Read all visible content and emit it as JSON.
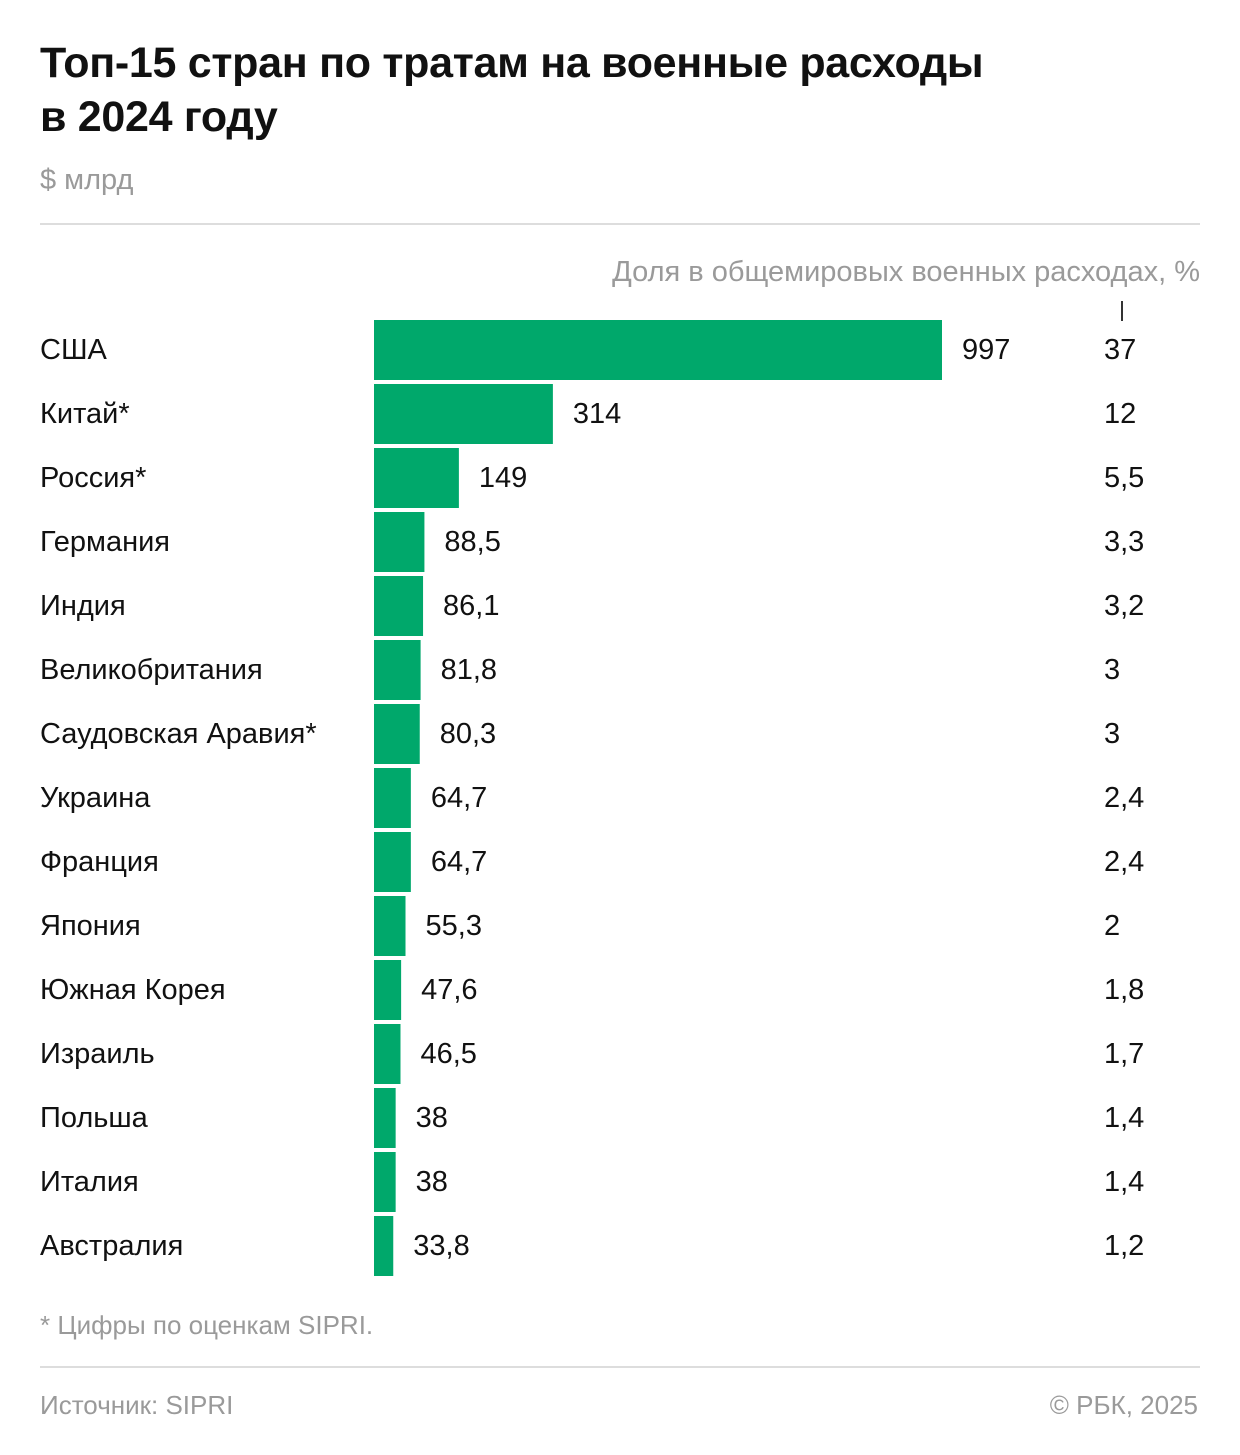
{
  "title": {
    "line1": "Топ-15 стран по тратам на военные расходы",
    "line2": "в 2024 году"
  },
  "unit": "$ млрд",
  "share_label": "Доля в общемировых военных расходах, %",
  "footnote": "* Цифры по оценкам SIPRI.",
  "source": "Источник: SIPRI",
  "copyright": "© РБК, 2025",
  "colors": {
    "bar": "#00a86b",
    "text": "#111111",
    "muted": "#9a9a9a"
  },
  "chart_data": {
    "type": "bar",
    "orientation": "horizontal",
    "title": "Топ-15 стран по тратам на военные расходы в 2024 году",
    "xlabel": "$ млрд",
    "ylabel": "",
    "xlim": [
      0,
      997
    ],
    "categories": [
      "США",
      "Китай*",
      "Россия*",
      "Германия",
      "Индия",
      "Великобритания",
      "Саудовская Аравия*",
      "Украина",
      "Франция",
      "Япония",
      "Южная Корея",
      "Израиль",
      "Польша",
      "Италия",
      "Австралия"
    ],
    "values": [
      997,
      314,
      149,
      88.5,
      86.1,
      81.8,
      80.3,
      64.7,
      64.7,
      55.3,
      47.6,
      46.5,
      38,
      38,
      33.8
    ],
    "value_labels": [
      "997",
      "314",
      "149",
      "88,5",
      "86,1",
      "81,8",
      "80,3",
      "64,7",
      "64,7",
      "55,3",
      "47,6",
      "46,5",
      "38",
      "38",
      "33,8"
    ],
    "share_labels": [
      "37",
      "12",
      "5,5",
      "3,3",
      "3,2",
      "3",
      "3",
      "2,4",
      "2,4",
      "2",
      "1,8",
      "1,7",
      "1,4",
      "1,4",
      "1,2"
    ]
  }
}
